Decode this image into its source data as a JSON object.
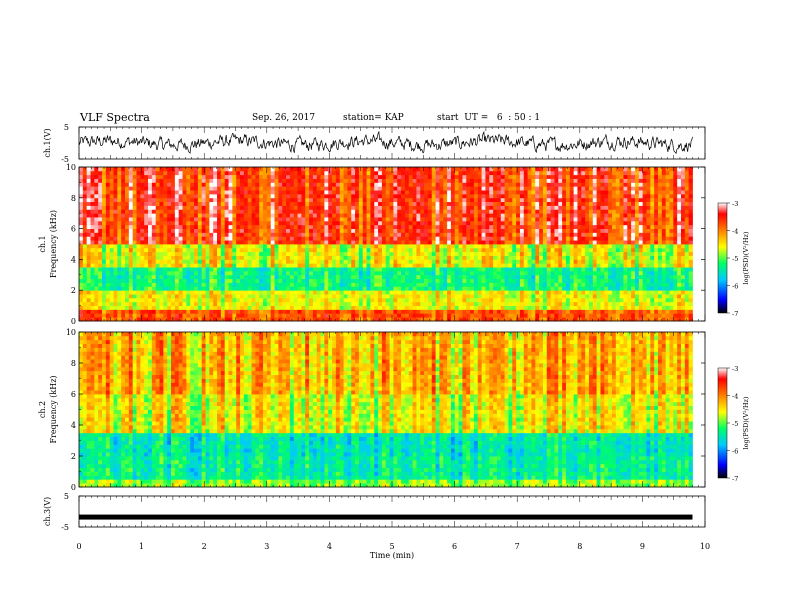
{
  "header": {
    "title": "VLF Spectra",
    "date": "Sep. 26, 2017",
    "station": "station= KAP",
    "start_ut": "start  UT =   6  : 50 : 1"
  },
  "chart_data": [
    {
      "type": "line",
      "panel": "ch1_waveform",
      "ylabel": "ch.1(V)",
      "ylim": [
        -5,
        5
      ],
      "y_ticks": [
        "5",
        "-5"
      ],
      "xlim": [
        0,
        10
      ],
      "description_values": "noisy waveform around 0 V, amplitude mostly within ±3 V",
      "x_end": 9.8
    },
    {
      "type": "heatmap",
      "panel": "ch1_spectrogram",
      "ylabel": "Frequency (kHz)",
      "channel_label": "ch.1",
      "ylim": [
        0,
        10
      ],
      "y_ticks": [
        "0",
        "2",
        "4",
        "6",
        "8",
        "10"
      ],
      "xlim": [
        0,
        10
      ],
      "x_end": 9.8,
      "colorbar": {
        "label": "log(PSD)(V²/Hz)",
        "range": [
          -7,
          -3
        ],
        "ticks": [
          "-3",
          "-4",
          "-5",
          "-6",
          "-7"
        ]
      },
      "bands_log_psd": [
        {
          "f_range": [
            0,
            0.8
          ],
          "level": -3.8
        },
        {
          "f_range": [
            0.8,
            2.0
          ],
          "level": -4.6
        },
        {
          "f_range": [
            2.0,
            3.6
          ],
          "level": -5.3
        },
        {
          "f_range": [
            3.6,
            5.0
          ],
          "level": -4.6
        },
        {
          "f_range": [
            5.0,
            10.0
          ],
          "level": -3.6
        }
      ]
    },
    {
      "type": "heatmap",
      "panel": "ch2_spectrogram",
      "ylabel": "Frequency (kHz)",
      "channel_label": "ch.2",
      "ylim": [
        0,
        10
      ],
      "y_ticks": [
        "0",
        "2",
        "4",
        "6",
        "8",
        "10"
      ],
      "xlim": [
        0,
        10
      ],
      "x_end": 9.8,
      "colorbar": {
        "label": "log(PSD)(V²/Hz)",
        "range": [
          -7,
          -3
        ],
        "ticks": [
          "-3",
          "-4",
          "-5",
          "-6",
          "-7"
        ]
      },
      "bands_log_psd": [
        {
          "f_range": [
            0,
            0.6
          ],
          "level": -4.9
        },
        {
          "f_range": [
            0.6,
            2.0
          ],
          "level": -5.4
        },
        {
          "f_range": [
            2.0,
            3.6
          ],
          "level": -5.5
        },
        {
          "f_range": [
            3.6,
            6.0
          ],
          "level": -4.6
        },
        {
          "f_range": [
            6.0,
            10.0
          ],
          "level": -4.3
        }
      ]
    },
    {
      "type": "line",
      "panel": "ch3_waveform",
      "ylabel": "ch.3(V)",
      "ylim": [
        -5,
        5
      ],
      "y_ticks": [
        "5",
        "-5"
      ],
      "xlim": [
        0,
        10
      ],
      "x_end": 9.8,
      "value": -1.8,
      "xlabel": "Time (min)",
      "x_ticks": [
        "0",
        "1",
        "2",
        "3",
        "4",
        "5",
        "6",
        "7",
        "8",
        "9",
        "10"
      ]
    }
  ],
  "colors": {
    "line": "#000000",
    "colormap": [
      "#000000",
      "#0000ff",
      "#00c8ff",
      "#00ff66",
      "#ffff00",
      "#ff8000",
      "#ff0000",
      "#ffffff"
    ]
  }
}
